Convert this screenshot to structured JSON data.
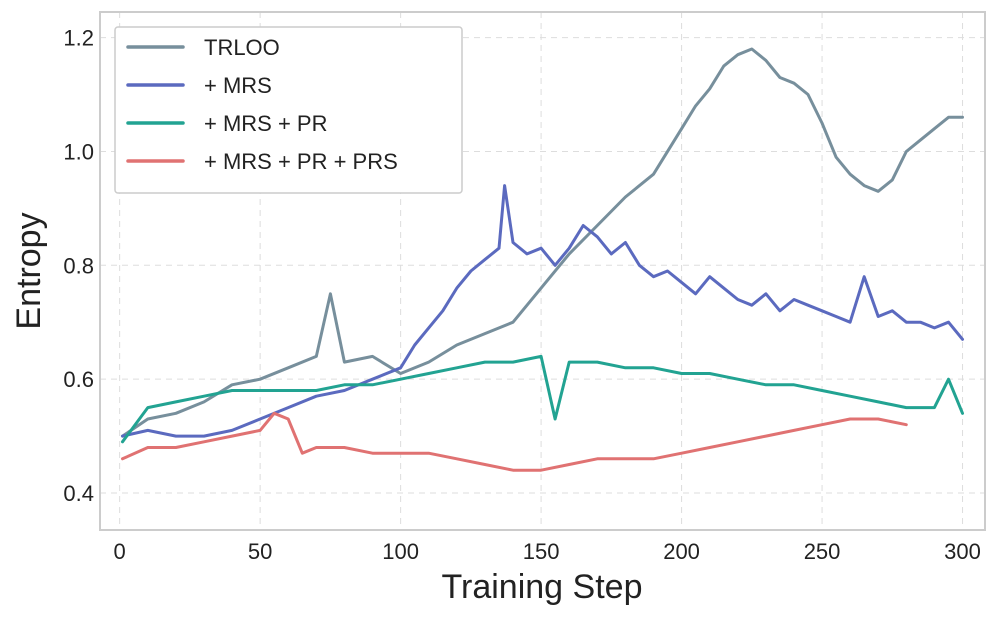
{
  "chart_data": {
    "type": "line",
    "title": "",
    "xlabel": "Training Step",
    "ylabel": "Entropy",
    "xlim": [
      -7,
      308
    ],
    "ylim": [
      0.335,
      1.245
    ],
    "xticks": [
      0,
      50,
      100,
      150,
      200,
      250,
      300
    ],
    "yticks": [
      0.4,
      0.6,
      0.8,
      1.0,
      1.2
    ],
    "xtick_labels": [
      "0",
      "50",
      "100",
      "150",
      "200",
      "250",
      "300"
    ],
    "ytick_labels": [
      "0.4",
      "0.6",
      "0.8",
      "1.0",
      "1.2"
    ],
    "grid": true,
    "legend_position": "top-left",
    "series": [
      {
        "name": "TRLOO",
        "color": "#778f9c",
        "x": [
          1,
          10,
          20,
          30,
          40,
          50,
          60,
          70,
          75,
          80,
          90,
          100,
          110,
          120,
          130,
          140,
          150,
          160,
          170,
          180,
          190,
          200,
          205,
          210,
          215,
          220,
          225,
          230,
          235,
          240,
          245,
          250,
          255,
          260,
          265,
          270,
          275,
          280,
          285,
          290,
          295,
          300
        ],
        "y": [
          0.5,
          0.53,
          0.54,
          0.56,
          0.59,
          0.6,
          0.62,
          0.64,
          0.75,
          0.63,
          0.64,
          0.61,
          0.63,
          0.66,
          0.68,
          0.7,
          0.76,
          0.82,
          0.87,
          0.92,
          0.96,
          1.04,
          1.08,
          1.11,
          1.15,
          1.17,
          1.18,
          1.16,
          1.13,
          1.12,
          1.1,
          1.05,
          0.99,
          0.96,
          0.94,
          0.93,
          0.95,
          1.0,
          1.02,
          1.04,
          1.06,
          1.06
        ]
      },
      {
        "name": "+ MRS",
        "color": "#5b6abf",
        "x": [
          1,
          10,
          20,
          30,
          40,
          50,
          60,
          70,
          80,
          90,
          100,
          105,
          110,
          115,
          120,
          125,
          130,
          135,
          137,
          140,
          145,
          150,
          155,
          160,
          165,
          170,
          175,
          180,
          185,
          190,
          195,
          200,
          205,
          210,
          215,
          220,
          225,
          230,
          235,
          240,
          245,
          250,
          255,
          260,
          265,
          270,
          275,
          280,
          285,
          290,
          295,
          300
        ],
        "y": [
          0.5,
          0.51,
          0.5,
          0.5,
          0.51,
          0.53,
          0.55,
          0.57,
          0.58,
          0.6,
          0.62,
          0.66,
          0.69,
          0.72,
          0.76,
          0.79,
          0.81,
          0.83,
          0.94,
          0.84,
          0.82,
          0.83,
          0.8,
          0.83,
          0.87,
          0.85,
          0.82,
          0.84,
          0.8,
          0.78,
          0.79,
          0.77,
          0.75,
          0.78,
          0.76,
          0.74,
          0.73,
          0.75,
          0.72,
          0.74,
          0.73,
          0.72,
          0.71,
          0.7,
          0.78,
          0.71,
          0.72,
          0.7,
          0.7,
          0.69,
          0.7,
          0.67
        ]
      },
      {
        "name": "+ MRS + PR",
        "color": "#22a392",
        "x": [
          1,
          10,
          20,
          30,
          40,
          50,
          60,
          70,
          80,
          90,
          100,
          110,
          120,
          130,
          140,
          150,
          155,
          160,
          170,
          180,
          190,
          200,
          210,
          220,
          230,
          240,
          250,
          260,
          270,
          280,
          290,
          295,
          300
        ],
        "y": [
          0.49,
          0.55,
          0.56,
          0.57,
          0.58,
          0.58,
          0.58,
          0.58,
          0.59,
          0.59,
          0.6,
          0.61,
          0.62,
          0.63,
          0.63,
          0.64,
          0.53,
          0.63,
          0.63,
          0.62,
          0.62,
          0.61,
          0.61,
          0.6,
          0.59,
          0.59,
          0.58,
          0.57,
          0.56,
          0.55,
          0.55,
          0.6,
          0.54
        ]
      },
      {
        "name": "+ MRS + PR + PRS",
        "color": "#e07272",
        "x": [
          1,
          10,
          20,
          30,
          40,
          50,
          55,
          60,
          65,
          70,
          80,
          90,
          100,
          110,
          120,
          130,
          140,
          150,
          160,
          170,
          180,
          190,
          200,
          210,
          220,
          230,
          240,
          250,
          260,
          270,
          280
        ],
        "y": [
          0.46,
          0.48,
          0.48,
          0.49,
          0.5,
          0.51,
          0.54,
          0.53,
          0.47,
          0.48,
          0.48,
          0.47,
          0.47,
          0.47,
          0.46,
          0.45,
          0.44,
          0.44,
          0.45,
          0.46,
          0.46,
          0.46,
          0.47,
          0.48,
          0.49,
          0.5,
          0.51,
          0.52,
          0.53,
          0.53,
          0.52
        ]
      }
    ]
  }
}
